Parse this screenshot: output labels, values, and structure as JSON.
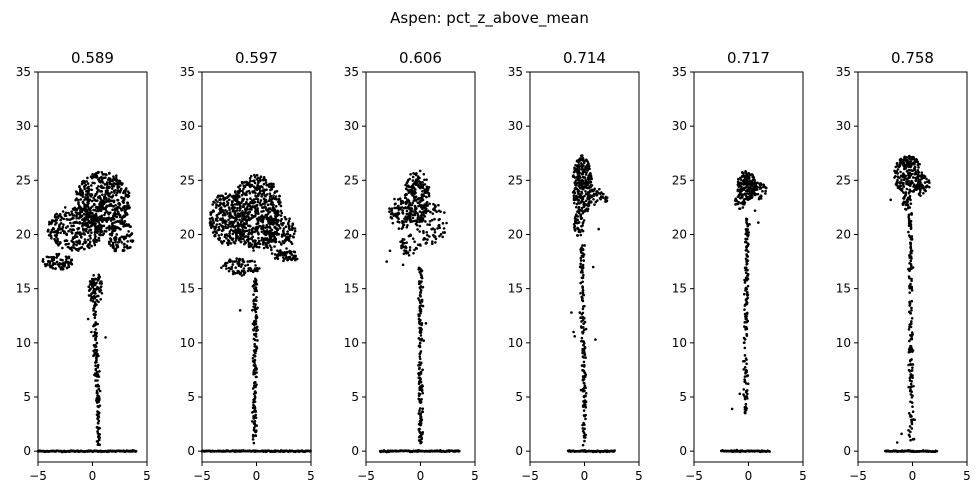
{
  "figure": {
    "suptitle": "Aspen: pct_z_above_mean"
  },
  "chart_data": {
    "type": "scatter",
    "title": "Aspen: pct_z_above_mean",
    "xlabel": "",
    "ylabel": "",
    "xlim": [
      -5,
      5
    ],
    "ylim": [
      -1,
      35
    ],
    "x_ticks": [
      -5,
      0,
      5
    ],
    "y_ticks": [
      0,
      5,
      10,
      15,
      20,
      25,
      30,
      35
    ],
    "grid": false,
    "point_color": "#000000",
    "panels": [
      {
        "title": "0.589",
        "ground": [
          -5,
          4
        ],
        "stem": {
          "base": [
            0.6,
            0.5
          ],
          "top": [
            0.1,
            16
          ]
        },
        "crown": [
          {
            "cx": 0.9,
            "cy": 23,
            "rx": 2.6,
            "ry": 2.8,
            "n": 520
          },
          {
            "cx": -1.5,
            "cy": 20.5,
            "rx": 2.6,
            "ry": 2.0,
            "n": 300
          },
          {
            "cx": -3.2,
            "cy": 17.5,
            "rx": 1.4,
            "ry": 0.8,
            "n": 90
          },
          {
            "cx": 2.6,
            "cy": 19.8,
            "rx": 1.2,
            "ry": 1.5,
            "n": 110
          },
          {
            "cx": 0.3,
            "cy": 15,
            "rx": 0.7,
            "ry": 1.4,
            "n": 60
          }
        ],
        "outliers": [
          [
            -0.1,
            11
          ],
          [
            -0.4,
            12.2
          ],
          [
            1.2,
            10.5
          ],
          [
            -2.5,
            22.5
          ]
        ]
      },
      {
        "title": "0.597",
        "ground": [
          -5,
          5
        ],
        "stem": {
          "base": [
            -0.2,
            0.7
          ],
          "top": [
            -0.1,
            16
          ]
        },
        "crown": [
          {
            "cx": 0.0,
            "cy": 22,
            "rx": 2.4,
            "ry": 3.5,
            "n": 520
          },
          {
            "cx": -2.5,
            "cy": 21.5,
            "rx": 1.8,
            "ry": 2.5,
            "n": 280
          },
          {
            "cx": 2.0,
            "cy": 20,
            "rx": 1.6,
            "ry": 2.0,
            "n": 140
          },
          {
            "cx": 2.8,
            "cy": 18,
            "rx": 1.2,
            "ry": 0.5,
            "n": 50
          },
          {
            "cx": -1.5,
            "cy": 17,
            "rx": 1.8,
            "ry": 0.8,
            "n": 80
          }
        ],
        "outliers": [
          [
            -2.2,
            17.5
          ],
          [
            -1.5,
            13
          ],
          [
            -0.2,
            7.5
          ],
          [
            -0.3,
            4
          ]
        ]
      },
      {
        "title": "0.606",
        "ground": [
          -3.7,
          3.6
        ],
        "stem": {
          "base": [
            0.0,
            0.5
          ],
          "top": [
            0.0,
            17
          ]
        },
        "crown": [
          {
            "cx": -0.3,
            "cy": 23.5,
            "rx": 1.2,
            "ry": 2.5,
            "n": 200
          },
          {
            "cx": -1.8,
            "cy": 22,
            "rx": 1.2,
            "ry": 1.5,
            "n": 90
          },
          {
            "cx": 1.0,
            "cy": 21,
            "rx": 1.5,
            "ry": 2.0,
            "n": 80
          },
          {
            "cx": -1.0,
            "cy": 19,
            "rx": 1.0,
            "ry": 1.0,
            "n": 40
          }
        ],
        "outliers": [
          [
            -2.8,
            18.5
          ],
          [
            -3.1,
            17.5
          ],
          [
            -1.6,
            17.2
          ],
          [
            0.0,
            2.4
          ],
          [
            0.2,
            6.0
          ],
          [
            0.3,
            10.2
          ],
          [
            0.5,
            11.8
          ]
        ]
      },
      {
        "title": "0.714",
        "ground": [
          -1.5,
          2.8
        ],
        "stem": {
          "base": [
            0.0,
            0.5
          ],
          "top": [
            -0.2,
            19
          ]
        },
        "crown": [
          {
            "cx": -0.2,
            "cy": 24.5,
            "rx": 0.9,
            "ry": 2.8,
            "n": 260
          },
          {
            "cx": 1.2,
            "cy": 23.5,
            "rx": 1.0,
            "ry": 0.8,
            "n": 40
          },
          {
            "cx": -0.5,
            "cy": 21,
            "rx": 0.5,
            "ry": 1.2,
            "n": 40
          }
        ],
        "outliers": [
          [
            1.3,
            20.5
          ],
          [
            0.8,
            17
          ],
          [
            -1.0,
            11
          ],
          [
            -0.9,
            10.6
          ],
          [
            1.0,
            10.3
          ],
          [
            -1.2,
            12.8
          ]
        ]
      },
      {
        "title": "0.717",
        "ground": [
          -2.5,
          2.0
        ],
        "stem": {
          "base": [
            -0.3,
            3.5
          ],
          "top": [
            -0.1,
            21.5
          ]
        },
        "crown": [
          {
            "cx": -0.2,
            "cy": 24.5,
            "rx": 0.9,
            "ry": 1.4,
            "n": 150
          },
          {
            "cx": 1.0,
            "cy": 24.0,
            "rx": 0.7,
            "ry": 0.8,
            "n": 40
          },
          {
            "cx": -0.8,
            "cy": 23,
            "rx": 0.5,
            "ry": 0.8,
            "n": 30
          }
        ],
        "outliers": [
          [
            -0.8,
            5.3
          ],
          [
            -1.5,
            3.9
          ],
          [
            0.9,
            21.1
          ],
          [
            0.6,
            22.2
          ]
        ]
      },
      {
        "title": "0.758",
        "ground": [
          -2.5,
          2.3
        ],
        "stem": {
          "base": [
            -0.1,
            1.0
          ],
          "top": [
            -0.2,
            22
          ]
        },
        "crown": [
          {
            "cx": -0.4,
            "cy": 25.5,
            "rx": 1.3,
            "ry": 1.8,
            "n": 200
          },
          {
            "cx": 0.9,
            "cy": 24.5,
            "rx": 0.7,
            "ry": 1.0,
            "n": 50
          },
          {
            "cx": -0.5,
            "cy": 23,
            "rx": 0.4,
            "ry": 0.8,
            "n": 30
          }
        ],
        "outliers": [
          [
            -2.0,
            23.2
          ],
          [
            -1.0,
            1.6
          ],
          [
            -1.4,
            0.8
          ],
          [
            0.2,
            2.9
          ],
          [
            -0.3,
            3.5
          ]
        ]
      }
    ]
  }
}
